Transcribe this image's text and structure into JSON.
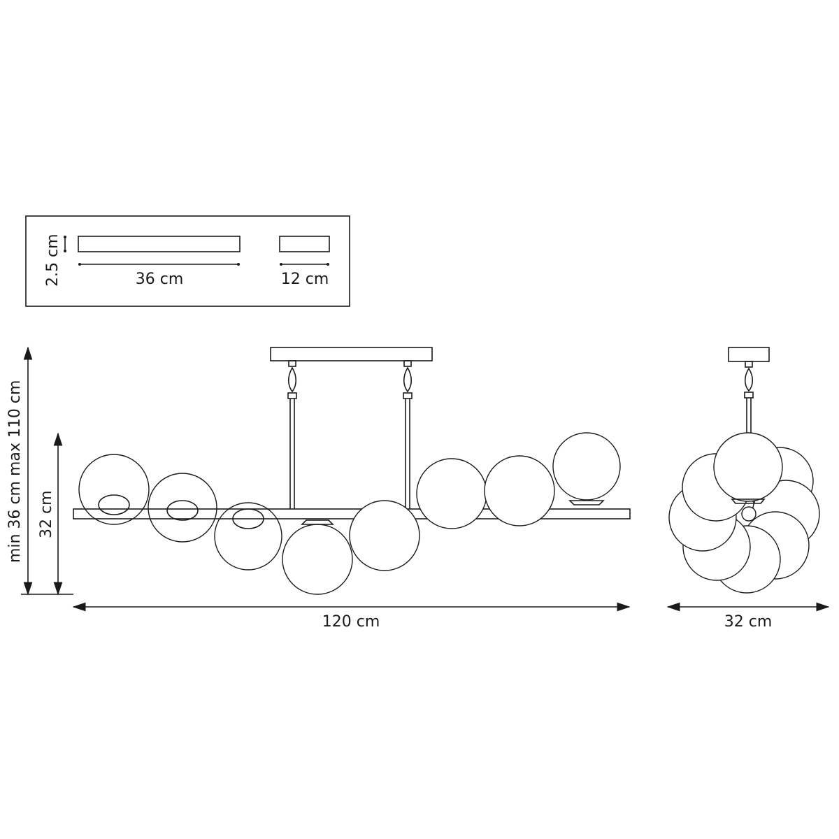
{
  "canopy_inset": {
    "height_label": "2.5 cm",
    "long_plate_label": "36 cm",
    "short_plate_label": "12 cm"
  },
  "front_view": {
    "adjustable_height_label": "min 36 cm max 110 cm",
    "body_height_label": "32 cm",
    "width_label": "120 cm",
    "globe_count": 8
  },
  "side_view": {
    "width_label": "32 cm"
  }
}
